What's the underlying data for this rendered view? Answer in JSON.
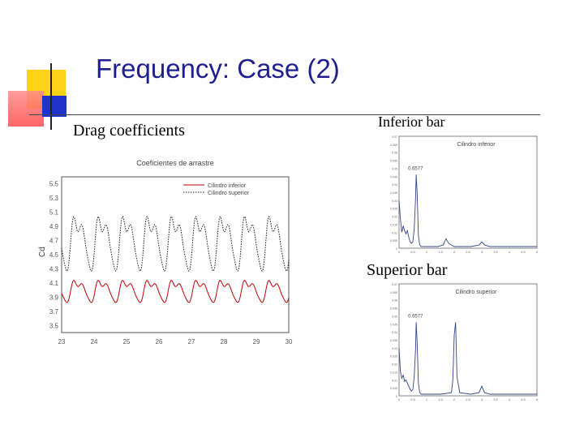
{
  "slide": {
    "title": "Frequency: Case (2)",
    "bullet_drag": "Drag coefficients",
    "caption_inferior": "Inferior bar",
    "caption_superior": "Superior bar",
    "colors": {
      "title": "#1f1f8f",
      "deco_yellow": "#ffd21a",
      "deco_red": "#ff5a5a",
      "deco_blue": "#2233cc"
    }
  },
  "chart_data": [
    {
      "type": "line",
      "title": "Coeficientes de arrastre",
      "ylabel": "Cd",
      "xlabel": "",
      "x_ticks": [
        "23",
        "24",
        "25",
        "26",
        "27",
        "28",
        "29",
        "30"
      ],
      "y_ticks": [
        "5.5",
        "5.3",
        "5.1",
        "4.9",
        "4.7",
        "4.5",
        "4.3",
        "4.1",
        "3.9",
        "3.7",
        "3.5"
      ],
      "xlim": [
        23,
        30
      ],
      "ylim": [
        3.4,
        5.6
      ],
      "legend": "top-right",
      "grid": false,
      "series": [
        {
          "name": "Cilindro inferior",
          "color": "#c00000",
          "style": "solid",
          "mean": 4.0,
          "amplitude": 0.17
        },
        {
          "name": "Cilindro superior",
          "color": "#222222",
          "style": "dotted",
          "mean": 4.7,
          "amplitude": 0.42
        }
      ]
    },
    {
      "type": "line",
      "title": "Cilindro inferior",
      "annotation": "0.6577",
      "xlim": [
        0,
        5
      ],
      "ylim": [
        0,
        0.07
      ],
      "x_ticks": [
        "0",
        "0.5",
        "1",
        "1.5",
        "2",
        "2.5",
        "3",
        "3.5",
        "4",
        "4.5",
        "5"
      ],
      "y_ticks": [
        "0.07",
        "0.065",
        "0.06",
        "0.055",
        "0.05",
        "0.045",
        "0.04",
        "0.035",
        "0.03",
        "0.025",
        "0.02",
        "0.015",
        "0.01",
        "0.005",
        "0"
      ],
      "x": [
        0,
        0.05,
        0.1,
        0.15,
        0.2,
        0.25,
        0.3,
        0.35,
        0.4,
        0.45,
        0.5,
        0.55,
        0.6,
        0.62,
        0.66,
        0.7,
        0.75,
        0.8,
        0.9,
        1.0,
        1.2,
        1.4,
        1.6,
        1.7,
        1.8,
        1.9,
        2.0,
        2.2,
        2.6,
        2.9,
        3.0,
        3.1,
        3.3,
        4.0,
        5.0
      ],
      "y": [
        0.03,
        0.018,
        0.01,
        0.014,
        0.011,
        0.009,
        0.011,
        0.007,
        0.004,
        0.003,
        0.004,
        0.012,
        0.032,
        0.046,
        0.033,
        0.008,
        0.002,
        0.001,
        0.001,
        0.001,
        0.001,
        0.001,
        0.002,
        0.006,
        0.003,
        0.002,
        0.001,
        0.001,
        0.001,
        0.002,
        0.004,
        0.002,
        0.001,
        0.001,
        0.001
      ]
    },
    {
      "type": "line",
      "title": "Cilindro superior",
      "annotation": "0.6577",
      "xlim": [
        0,
        5
      ],
      "ylim": [
        0,
        0.07
      ],
      "x_ticks": [
        "0",
        "0.5",
        "1",
        "1.5",
        "2",
        "2.5",
        "3",
        "3.5",
        "4",
        "4.5",
        "5"
      ],
      "y_ticks": [
        "0.07",
        "0.065",
        "0.06",
        "0.055",
        "0.05",
        "0.045",
        "0.04",
        "0.035",
        "0.03",
        "0.025",
        "0.02",
        "0.015",
        "0.01",
        "0.005",
        "0"
      ],
      "x": [
        0,
        0.05,
        0.1,
        0.15,
        0.2,
        0.25,
        0.3,
        0.35,
        0.4,
        0.45,
        0.5,
        0.55,
        0.6,
        0.62,
        0.66,
        0.7,
        0.75,
        0.8,
        1.0,
        1.5,
        1.9,
        1.95,
        2.0,
        2.05,
        2.1,
        2.2,
        2.6,
        2.9,
        3.0,
        3.1,
        3.3,
        4.0,
        5.0
      ],
      "y": [
        0.03,
        0.015,
        0.011,
        0.013,
        0.009,
        0.01,
        0.008,
        0.006,
        0.004,
        0.003,
        0.004,
        0.012,
        0.03,
        0.046,
        0.032,
        0.008,
        0.002,
        0.001,
        0.001,
        0.001,
        0.002,
        0.01,
        0.038,
        0.046,
        0.012,
        0.002,
        0.001,
        0.002,
        0.006,
        0.002,
        0.001,
        0.001,
        0.001
      ]
    }
  ]
}
